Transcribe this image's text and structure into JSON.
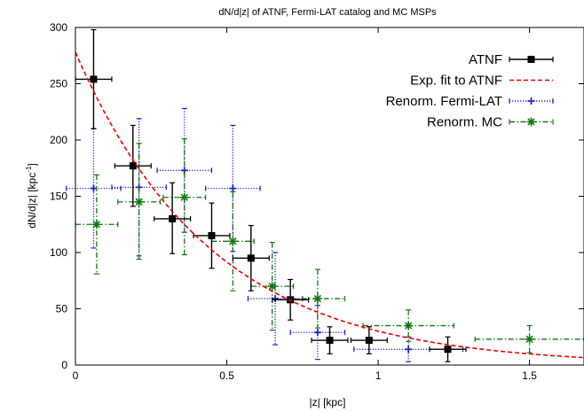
{
  "chart_data": {
    "type": "scatter",
    "title": "dN/d|z| of ATNF, Fermi-LAT catalog and MC MSPs",
    "xlabel": "|z| [kpc]",
    "ylabel_main": "dN/d|z| [kpc",
    "ylabel_sup": "-1",
    "ylabel_end": "]",
    "xlim": [
      0,
      1.68
    ],
    "ylim": [
      0,
      300
    ],
    "xticks": [
      0,
      0.5,
      1,
      1.5
    ],
    "xtick_labels": [
      "0",
      "0.5",
      "1",
      "1.5"
    ],
    "yticks": [
      0,
      50,
      100,
      150,
      200,
      250,
      300
    ],
    "ytick_labels": [
      "0",
      "50",
      "100",
      "150",
      "200",
      "250",
      "300"
    ],
    "grid": false,
    "legend_position": "top-right",
    "series": [
      {
        "name": "ATNF",
        "color": "#000000",
        "marker": "square",
        "line": "solid",
        "points": [
          {
            "x": 0.06,
            "y": 254,
            "xerr": 0.06,
            "ylo": 210,
            "yhi": 298
          },
          {
            "x": 0.19,
            "y": 177,
            "xerr": 0.06,
            "ylo": 141,
            "yhi": 213
          },
          {
            "x": 0.32,
            "y": 130,
            "xerr": 0.06,
            "ylo": 99,
            "yhi": 162
          },
          {
            "x": 0.45,
            "y": 115,
            "xerr": 0.06,
            "ylo": 86,
            "yhi": 144
          },
          {
            "x": 0.58,
            "y": 95,
            "xerr": 0.06,
            "ylo": 66,
            "yhi": 124
          },
          {
            "x": 0.71,
            "y": 58,
            "xerr": 0.06,
            "ylo": 40,
            "yhi": 76
          },
          {
            "x": 0.84,
            "y": 22,
            "xerr": 0.06,
            "ylo": 10,
            "yhi": 34
          },
          {
            "x": 0.97,
            "y": 22,
            "xerr": 0.06,
            "ylo": 10,
            "yhi": 34
          },
          {
            "x": 1.23,
            "y": 14,
            "xerr": 0.06,
            "ylo": 3,
            "yhi": 25
          }
        ]
      },
      {
        "name": "Exp. fit to ATNF",
        "color": "#ee0000",
        "line": "dashed",
        "fit": {
          "amplitude": 278,
          "scale": 0.45
        },
        "x": [
          0,
          0.1,
          0.2,
          0.3,
          0.4,
          0.5,
          0.6,
          0.7,
          0.8,
          0.9,
          1.0,
          1.1,
          1.2,
          1.3,
          1.4,
          1.5,
          1.6,
          1.68
        ],
        "y": [
          278,
          223,
          178,
          142,
          114,
          91,
          73,
          58,
          47,
          38,
          30,
          24,
          19,
          15,
          12,
          10,
          8,
          7
        ]
      },
      {
        "name": "Renorm. Fermi-LAT",
        "color": "#2222cc",
        "marker": "plus",
        "line": "dotted",
        "points": [
          {
            "x": 0.06,
            "y": 157,
            "xerr": 0.09,
            "ylo": 104,
            "yhi": 210
          },
          {
            "x": 0.21,
            "y": 158,
            "xerr": 0.09,
            "ylo": 97,
            "yhi": 219
          },
          {
            "x": 0.36,
            "y": 173,
            "xerr": 0.09,
            "ylo": 118,
            "yhi": 228
          },
          {
            "x": 0.52,
            "y": 157,
            "xerr": 0.09,
            "ylo": 101,
            "yhi": 213
          },
          {
            "x": 0.66,
            "y": 59,
            "xerr": 0.09,
            "ylo": 18,
            "yhi": 100
          },
          {
            "x": 0.8,
            "y": 29,
            "xerr": 0.09,
            "ylo": 5,
            "yhi": 53
          },
          {
            "x": 1.1,
            "y": 14,
            "xerr": 0.18,
            "ylo": 3,
            "yhi": 25
          }
        ]
      },
      {
        "name": "Renorm. MC",
        "color": "#117711",
        "marker": "star",
        "line": "dashdot",
        "points": [
          {
            "x": 0.07,
            "y": 125,
            "xerr": 0.07,
            "ylo": 81,
            "yhi": 169
          },
          {
            "x": 0.21,
            "y": 145,
            "xerr": 0.07,
            "ylo": 94,
            "yhi": 197
          },
          {
            "x": 0.36,
            "y": 149,
            "xerr": 0.07,
            "ylo": 98,
            "yhi": 201
          },
          {
            "x": 0.52,
            "y": 110,
            "xerr": 0.07,
            "ylo": 66,
            "yhi": 154
          },
          {
            "x": 0.65,
            "y": 70,
            "xerr": 0.07,
            "ylo": 31,
            "yhi": 109
          },
          {
            "x": 0.8,
            "y": 59,
            "xerr": 0.09,
            "ylo": 33,
            "yhi": 85
          },
          {
            "x": 1.1,
            "y": 35,
            "xerr": 0.15,
            "ylo": 21,
            "yhi": 49
          },
          {
            "x": 1.5,
            "y": 23,
            "xerr": 0.18,
            "ylo": 11,
            "yhi": 35
          }
        ]
      }
    ]
  }
}
